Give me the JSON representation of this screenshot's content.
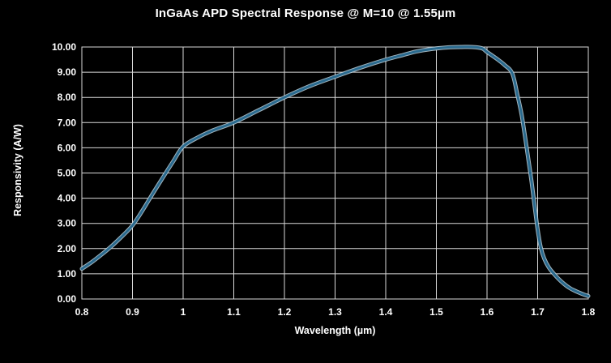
{
  "chart_data": {
    "type": "line",
    "title": "InGaAs APD Spectral Response @ M=10 @ 1.55µm",
    "xlabel": "Wavelength (µm)",
    "ylabel": "Responsivity (A/W)",
    "xlim": [
      0.8,
      1.8
    ],
    "ylim": [
      0,
      10
    ],
    "grid": true,
    "legend_position": "none",
    "x_ticks": [
      0.8,
      0.9,
      1,
      1.1,
      1.2,
      1.3,
      1.4,
      1.5,
      1.6,
      1.7,
      1.8
    ],
    "x_tick_labels": [
      "0.8",
      "0.9",
      "1",
      "1.1",
      "1.2",
      "1.3",
      "1.4",
      "1.5",
      "1.6",
      "1.7",
      "1.8"
    ],
    "y_ticks": [
      0,
      1,
      2,
      3,
      4,
      5,
      6,
      7,
      8,
      9,
      10
    ],
    "y_tick_labels": [
      "0.00",
      "1.00",
      "2.00",
      "3.00",
      "4.00",
      "5.00",
      "6.00",
      "7.00",
      "8.00",
      "9.00",
      "10.00"
    ],
    "series": [
      {
        "color": "#2a6a8e",
        "halo_color": "#bcd2de",
        "points": [
          [
            0.8,
            1.2
          ],
          [
            0.82,
            1.47
          ],
          [
            0.84,
            1.78
          ],
          [
            0.86,
            2.12
          ],
          [
            0.88,
            2.5
          ],
          [
            0.9,
            2.92
          ],
          [
            0.92,
            3.52
          ],
          [
            0.94,
            4.18
          ],
          [
            0.96,
            4.82
          ],
          [
            0.98,
            5.45
          ],
          [
            1.0,
            6.05
          ],
          [
            1.03,
            6.42
          ],
          [
            1.06,
            6.7
          ],
          [
            1.1,
            7.0
          ],
          [
            1.15,
            7.5
          ],
          [
            1.2,
            8.0
          ],
          [
            1.25,
            8.45
          ],
          [
            1.3,
            8.82
          ],
          [
            1.35,
            9.18
          ],
          [
            1.4,
            9.5
          ],
          [
            1.43,
            9.66
          ],
          [
            1.46,
            9.82
          ],
          [
            1.49,
            9.92
          ],
          [
            1.52,
            9.98
          ],
          [
            1.55,
            10.0
          ],
          [
            1.57,
            10.0
          ],
          [
            1.59,
            9.95
          ],
          [
            1.6,
            9.8
          ],
          [
            1.62,
            9.52
          ],
          [
            1.635,
            9.28
          ],
          [
            1.65,
            8.95
          ],
          [
            1.66,
            8.1
          ],
          [
            1.668,
            7.35
          ],
          [
            1.675,
            6.45
          ],
          [
            1.682,
            5.5
          ],
          [
            1.688,
            4.65
          ],
          [
            1.694,
            3.7
          ],
          [
            1.7,
            2.75
          ],
          [
            1.706,
            2.05
          ],
          [
            1.713,
            1.6
          ],
          [
            1.722,
            1.25
          ],
          [
            1.732,
            1.0
          ],
          [
            1.742,
            0.78
          ],
          [
            1.752,
            0.6
          ],
          [
            1.762,
            0.45
          ],
          [
            1.772,
            0.34
          ],
          [
            1.782,
            0.25
          ],
          [
            1.792,
            0.17
          ],
          [
            1.8,
            0.12
          ]
        ]
      }
    ],
    "colors": {
      "background": "#000000",
      "grid_line": "#d9d9d9",
      "plot_border": "#d9d9d9",
      "text": "#ffffff"
    }
  }
}
